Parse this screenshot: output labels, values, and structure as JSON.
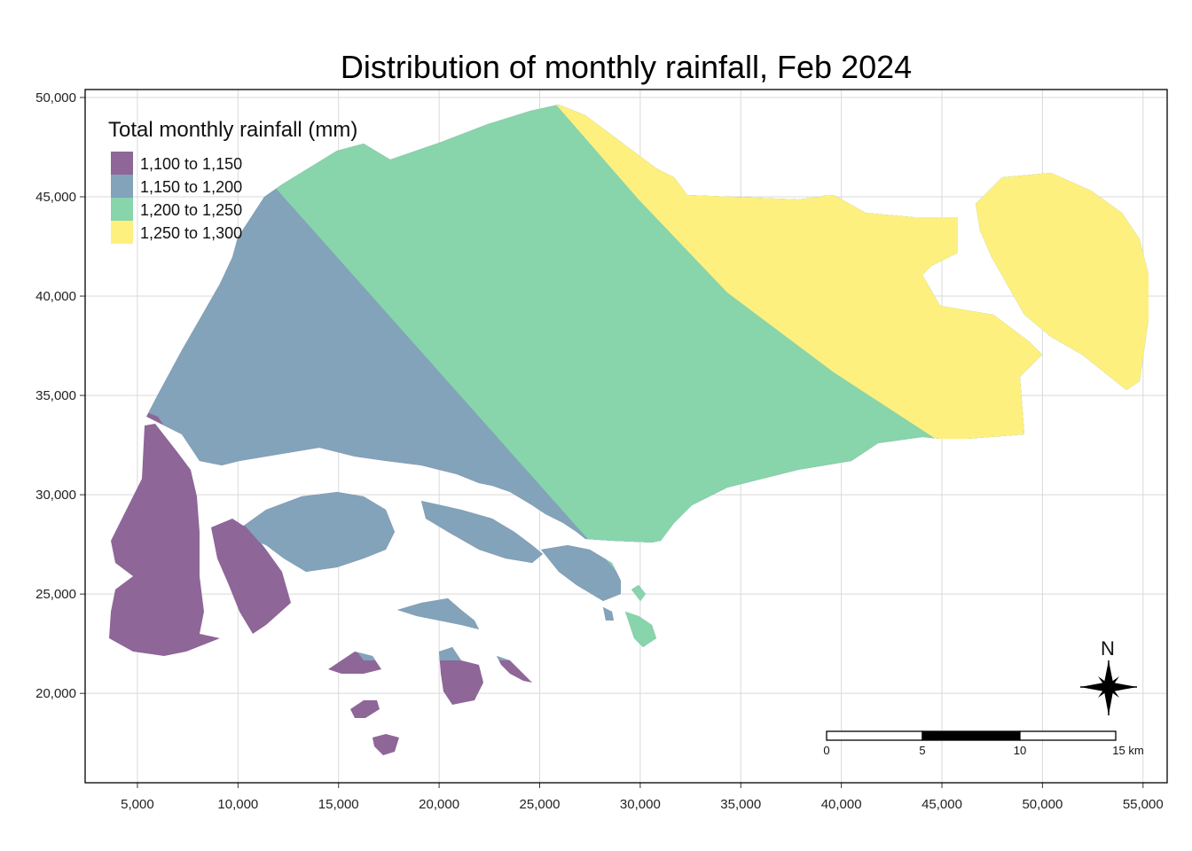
{
  "title": "Distribution of monthly rainfall, Feb 2024",
  "colors": {
    "class_1": "#8e6698",
    "class_2": "#82a3b9",
    "class_3": "#88d4ab",
    "class_4": "#fdf07f",
    "grid": "#d9d9d9",
    "frame": "#000000"
  },
  "chart_data": {
    "type": "choropleth",
    "title": "Distribution of monthly rainfall, Feb 2024",
    "xlim": [
      2400,
      56200
    ],
    "ylim": [
      15500,
      50400
    ],
    "x_ticks": [
      5000,
      10000,
      15000,
      20000,
      25000,
      30000,
      35000,
      40000,
      45000,
      50000,
      55000
    ],
    "x_tick_labels": [
      "5,000",
      "10,000",
      "15,000",
      "20,000",
      "25,000",
      "30,000",
      "35,000",
      "40,000",
      "45,000",
      "50,000",
      "55,000"
    ],
    "y_ticks": [
      20000,
      25000,
      30000,
      35000,
      40000,
      45000,
      50000
    ],
    "y_tick_labels": [
      "20,000",
      "25,000",
      "30,000",
      "35,000",
      "40,000",
      "45,000",
      "50,000"
    ],
    "grid": true,
    "legend": {
      "title": "Total monthly rainfall (mm)",
      "placement": "top-left",
      "classes": [
        {
          "label": "1,100 to 1,150",
          "min": 1100,
          "max": 1150,
          "color": "#8e6698"
        },
        {
          "label": "1,150 to 1,200",
          "min": 1150,
          "max": 1200,
          "color": "#82a3b9"
        },
        {
          "label": "1,200 to 1,250",
          "min": 1200,
          "max": 1250,
          "color": "#88d4ab"
        },
        {
          "label": "1,250 to 1,300",
          "min": 1250,
          "max": 1300,
          "color": "#fdf07f"
        }
      ]
    },
    "scale_bar": {
      "labels": [
        "0",
        "5",
        "10",
        "15 km"
      ],
      "segment_km": 5
    },
    "north_arrow": {
      "label": "N"
    }
  }
}
